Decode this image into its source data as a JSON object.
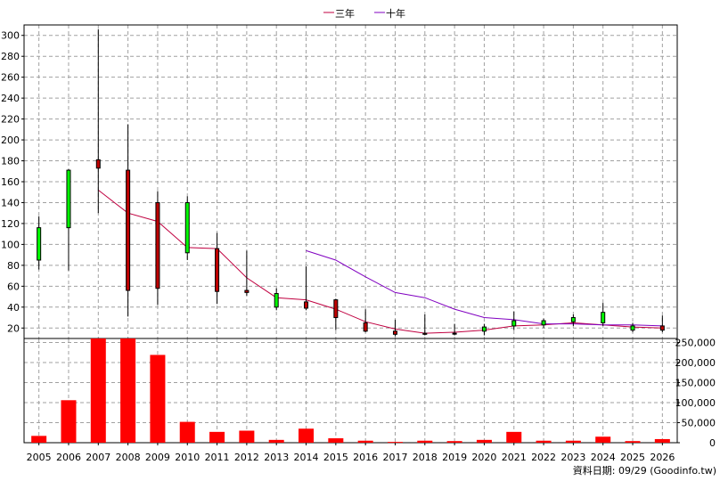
{
  "chart_data": {
    "type": "candlestick+line+bar",
    "legend": [
      {
        "label": "三年",
        "color": "#c00040"
      },
      {
        "label": "十年",
        "color": "#8000c0"
      }
    ],
    "legend_position": "top-center",
    "grid": true,
    "years": [
      "2005",
      "2006",
      "2007",
      "2008",
      "2009",
      "2010",
      "2011",
      "2012",
      "2013",
      "2014",
      "2015",
      "2016",
      "2017",
      "2018",
      "2019",
      "2020",
      "2021",
      "2022",
      "2023",
      "2024",
      "2025",
      "2026"
    ],
    "price_axis": {
      "ylim": [
        10,
        310
      ],
      "ticks": [
        20,
        40,
        60,
        80,
        100,
        120,
        140,
        160,
        180,
        200,
        220,
        240,
        260,
        280,
        300
      ]
    },
    "volume_axis": {
      "ylim": [
        0,
        260000
      ],
      "ticks": [
        0,
        50000,
        100000,
        150000,
        200000,
        250000
      ],
      "tick_labels": [
        "0",
        "50,000",
        "100,000",
        "150,000",
        "200,000",
        "250,000"
      ]
    },
    "candles": [
      {
        "year": "2005",
        "open": 85,
        "high": 127,
        "low": 76,
        "close": 116
      },
      {
        "year": "2006",
        "open": 116,
        "high": 172,
        "low": 75,
        "close": 171
      },
      {
        "year": "2007",
        "open": 181,
        "high": 306,
        "low": 130,
        "close": 173
      },
      {
        "year": "2008",
        "open": 171,
        "high": 215,
        "low": 31,
        "close": 56
      },
      {
        "year": "2009",
        "open": 140,
        "high": 151,
        "low": 42,
        "close": 58
      },
      {
        "year": "2010",
        "open": 92,
        "high": 146,
        "low": 85,
        "close": 140
      },
      {
        "year": "2011",
        "open": 96,
        "high": 111,
        "low": 43,
        "close": 55
      },
      {
        "year": "2012",
        "open": 56,
        "high": 94,
        "low": 51,
        "close": 54
      },
      {
        "year": "2013",
        "open": 40,
        "high": 58,
        "low": 37,
        "close": 53
      },
      {
        "year": "2014",
        "open": 45,
        "high": 79,
        "low": 37,
        "close": 39
      },
      {
        "year": "2015",
        "open": 47,
        "high": 48,
        "low": 18,
        "close": 30
      },
      {
        "year": "2016",
        "open": 25,
        "high": 38,
        "low": 16,
        "close": 17
      },
      {
        "year": "2017",
        "open": 17,
        "high": 28,
        "low": 12,
        "close": 14
      },
      {
        "year": "2018",
        "open": 15,
        "high": 33,
        "low": 13,
        "close": 14
      },
      {
        "year": "2019",
        "open": 15,
        "high": 24,
        "low": 13,
        "close": 15
      },
      {
        "year": "2020",
        "open": 17,
        "high": 24,
        "low": 13,
        "close": 21
      },
      {
        "year": "2021",
        "open": 22,
        "high": 36,
        "low": 18,
        "close": 27
      },
      {
        "year": "2022",
        "open": 23,
        "high": 29,
        "low": 20,
        "close": 27
      },
      {
        "year": "2023",
        "open": 26,
        "high": 33,
        "low": 22,
        "close": 30
      },
      {
        "year": "2024",
        "open": 25,
        "high": 44,
        "low": 22,
        "close": 35
      },
      {
        "year": "2025",
        "open": 18,
        "high": 25,
        "low": 16,
        "close": 22
      },
      {
        "year": "2026",
        "open": 22,
        "high": 32,
        "low": 16,
        "close": 18
      }
    ],
    "series": [
      {
        "name": "三年",
        "color": "#c00040",
        "values": [
          null,
          null,
          152,
          130,
          122,
          97,
          96,
          68,
          49,
          47,
          38,
          26,
          19,
          15,
          16,
          18,
          22,
          23,
          25,
          23,
          21,
          20
        ]
      },
      {
        "name": "十年",
        "color": "#8000c0",
        "values": [
          null,
          null,
          null,
          null,
          null,
          null,
          null,
          null,
          null,
          94,
          85,
          69,
          54,
          49,
          38,
          30,
          28,
          24,
          24,
          23,
          23,
          22
        ]
      }
    ],
    "volume": [
      17000,
      106000,
      260000,
      260000,
      219000,
      52000,
      27000,
      30000,
      7000,
      35000,
      11000,
      5000,
      2000,
      5000,
      4000,
      7000,
      27000,
      5000,
      5000,
      15000,
      4000,
      9000
    ]
  },
  "footer": {
    "text": "資料日期: 09/29 (Goodinfo.tw)"
  }
}
